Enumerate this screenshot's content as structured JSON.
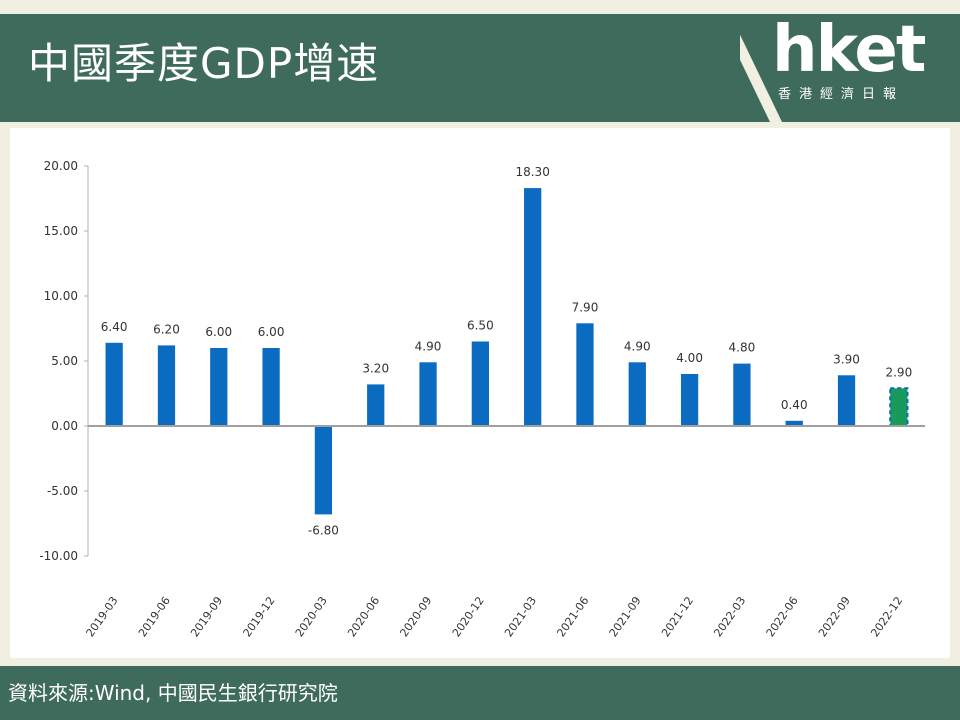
{
  "header": {
    "title": "中國季度GDP增速",
    "logo_text": "hket",
    "logo_subtitle": "香港經濟日報"
  },
  "footer": {
    "source": "資料來源:Wind, 中國民生銀行研究院"
  },
  "colors": {
    "header_bg": "#3f6b5c",
    "page_bg": "#f1eee2",
    "bar": "#0a6bc0",
    "bar_highlight": "#1a9a5a",
    "axis": "#999999"
  },
  "chart_data": {
    "type": "bar",
    "title": "",
    "xlabel": "",
    "ylabel": "",
    "ylim": [
      -10,
      20
    ],
    "yticks": [
      "20.00",
      "15.00",
      "10.00",
      "5.00",
      "0.00",
      "-5.00",
      "-10.00"
    ],
    "ytick_values": [
      20,
      15,
      10,
      5,
      0,
      -5,
      -10
    ],
    "categories": [
      "2019-03",
      "2019-06",
      "2019-09",
      "2019-12",
      "2020-03",
      "2020-06",
      "2020-09",
      "2020-12",
      "2021-03",
      "2021-06",
      "2021-09",
      "2021-12",
      "2022-03",
      "2022-06",
      "2022-09",
      "2022-12"
    ],
    "values": [
      6.4,
      6.2,
      6.0,
      6.0,
      -6.8,
      3.2,
      4.9,
      6.5,
      18.3,
      7.9,
      4.9,
      4.0,
      4.8,
      0.4,
      3.9,
      2.9
    ],
    "value_labels": [
      "6.40",
      "6.20",
      "6.00",
      "6.00",
      "-6.80",
      "3.20",
      "4.90",
      "6.50",
      "18.30",
      "7.90",
      "4.90",
      "4.00",
      "4.80",
      "0.40",
      "3.90",
      "2.90"
    ],
    "highlight_last": true,
    "grid": false,
    "legend": "none"
  }
}
